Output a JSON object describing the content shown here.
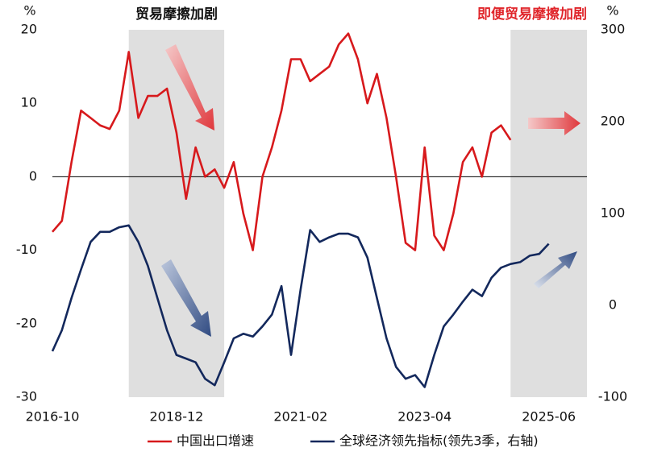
{
  "chart_data": {
    "type": "line",
    "x": [
      "2016-10",
      "2016-12",
      "2017-02",
      "2017-04",
      "2017-06",
      "2017-08",
      "2017-10",
      "2017-12",
      "2018-02",
      "2018-04",
      "2018-06",
      "2018-08",
      "2018-10",
      "2018-12",
      "2019-02",
      "2019-04",
      "2019-06",
      "2019-08",
      "2019-10",
      "2019-12",
      "2020-02",
      "2020-04",
      "2020-06",
      "2020-08",
      "2020-10",
      "2020-12",
      "2021-02",
      "2021-04",
      "2021-06",
      "2021-08",
      "2021-10",
      "2021-12",
      "2022-02",
      "2022-04",
      "2022-06",
      "2022-08",
      "2022-10",
      "2022-12",
      "2023-02",
      "2023-04",
      "2023-06",
      "2023-08",
      "2023-10",
      "2023-12",
      "2024-02",
      "2024-04",
      "2024-06",
      "2024-08",
      "2024-10",
      "2024-12",
      "2025-02",
      "2025-04",
      "2025-06",
      "2025-08",
      "2025-10",
      "2025-12",
      "2026-02"
    ],
    "series": [
      {
        "name": "中国出口增速",
        "color": "#d7191c",
        "values": [
          -7.5,
          -6,
          2,
          9,
          8,
          7,
          6.5,
          9,
          17,
          8,
          11,
          11,
          12,
          6,
          -3,
          4,
          0,
          1,
          -1.5,
          2,
          -5,
          -10,
          0,
          4,
          9,
          16,
          16,
          13,
          14,
          15,
          18,
          19.5,
          16,
          10,
          14,
          8,
          0,
          -9,
          -10,
          4,
          -8,
          -10,
          -5,
          2,
          4,
          0,
          6,
          7,
          5,
          null,
          null,
          null,
          null,
          null,
          null,
          null,
          null
        ]
      },
      {
        "name": "全球经济领先指标(领先3季，右轴)",
        "color": "#13285c",
        "axis": "y2",
        "values": [
          -50,
          -27,
          8,
          39,
          69,
          80,
          80,
          85,
          87,
          69,
          43,
          8,
          -27,
          -54,
          -58,
          -62,
          -80,
          -87,
          -62,
          -36,
          -31,
          -34,
          -23,
          -10,
          21,
          -54,
          17,
          82,
          69,
          74,
          78,
          78,
          74,
          52,
          8,
          -36,
          -67,
          -80,
          -76,
          -89,
          -54,
          -23,
          -10,
          4,
          17,
          10,
          30,
          41,
          45,
          47,
          54,
          56,
          67,
          null,
          null,
          null,
          null
        ]
      }
    ],
    "xticks": [
      "2016-10",
      "2018-12",
      "2021-02",
      "2023-04",
      "2025-06"
    ],
    "ylim": [
      -30,
      20
    ],
    "yticks": [
      -30,
      -20,
      -10,
      0,
      10,
      20
    ],
    "y_unit": "%",
    "y2lim": [
      -100,
      300
    ],
    "y2ticks": [
      -100,
      0,
      100,
      200,
      300
    ],
    "y2_unit": "%",
    "zero_line": true,
    "shaded": [
      {
        "from": "2018-02",
        "to": "2019-10"
      },
      {
        "from": "2024-10",
        "to": "2026-02"
      }
    ],
    "annotations": [
      {
        "text": "贸易摩擦加剧",
        "color": "#111111"
      },
      {
        "text": "即便贸易摩擦加剧",
        "color": "#e0262b"
      }
    ]
  }
}
